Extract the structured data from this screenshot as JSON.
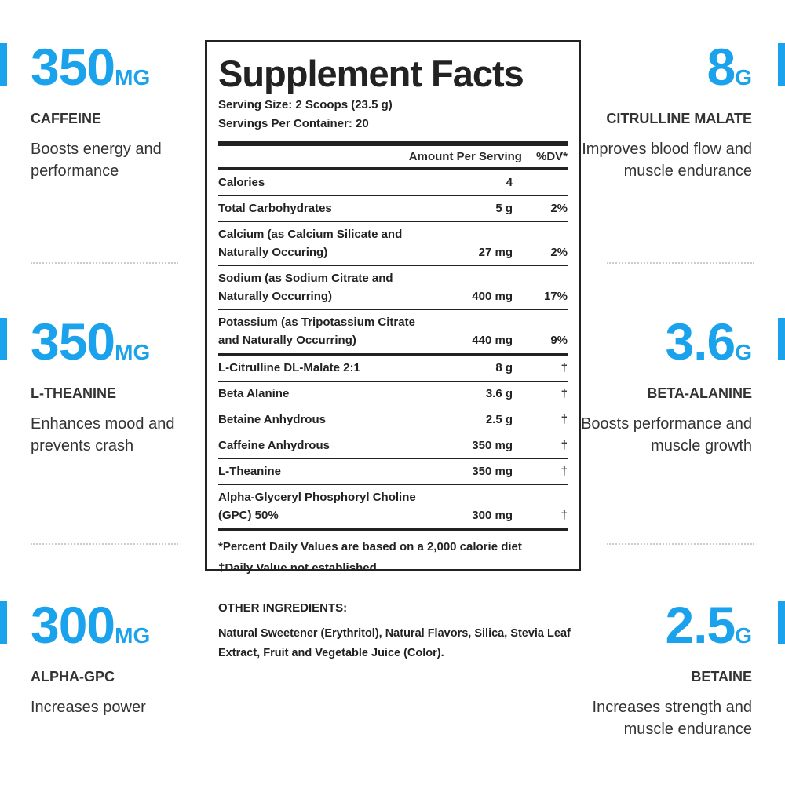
{
  "accent": "#1aa3ec",
  "left": [
    {
      "value": "350",
      "unit": "MG",
      "name": "CAFFEINE",
      "desc": "Boosts energy and performance"
    },
    {
      "value": "350",
      "unit": "MG",
      "name": "L-THEANINE",
      "desc": "Enhances mood and prevents crash"
    },
    {
      "value": "300",
      "unit": "MG",
      "name": "ALPHA-GPC",
      "desc": "Increases power"
    }
  ],
  "right": [
    {
      "value": "8",
      "unit": "G",
      "name": "CITRULLINE MALATE",
      "desc": "Improves blood flow and muscle endurance"
    },
    {
      "value": "3.6",
      "unit": "G",
      "name": "BETA-ALANINE",
      "desc": "Boosts performance and muscle growth"
    },
    {
      "value": "2.5",
      "unit": "G",
      "name": "BETAINE",
      "desc": "Increases strength and muscle endurance"
    }
  ],
  "facts": {
    "title": "Supplement Facts",
    "serving_size": "Serving Size: 2 Scoops (23.5 g)",
    "servings": "Servings Per Container: 20",
    "col_amount": "Amount Per Serving",
    "col_dv": "%DV*",
    "rows": [
      {
        "name": "Calories",
        "amount": "4",
        "dv": ""
      },
      {
        "name": "Total Carbohydrates",
        "amount": "5 g",
        "dv": "2%"
      },
      {
        "name": "Calcium (as Calcium Silicate and Naturally Occuring)",
        "amount": "27 mg",
        "dv": "2%"
      },
      {
        "name": "Sodium (as Sodium Citrate and Naturally Occurring)",
        "amount": "400 mg",
        "dv": "17%"
      },
      {
        "name": "Potassium (as Tripotassium Citrate and Naturally Occurring)",
        "amount": "440 mg",
        "dv": "9%"
      },
      {
        "name": "L-Citrulline DL-Malate 2:1",
        "amount": "8 g",
        "dv": "†"
      },
      {
        "name": "Beta Alanine",
        "amount": "3.6 g",
        "dv": "†"
      },
      {
        "name": "Betaine Anhydrous",
        "amount": "2.5 g",
        "dv": "†"
      },
      {
        "name": "Caffeine Anhydrous",
        "amount": "350 mg",
        "dv": "†"
      },
      {
        "name": "L-Theanine",
        "amount": "350 mg",
        "dv": "†"
      },
      {
        "name": "Alpha-Glyceryl Phosphoryl Choline (GPC) 50%",
        "amount": "300 mg",
        "dv": "†"
      }
    ],
    "footnote1": "*Percent Daily Values are based on a 2,000 calorie diet",
    "footnote2": "†Daily Value not established"
  },
  "other": {
    "title": "OTHER INGREDIENTS:",
    "text": "Natural Sweetener (Erythritol), Natural Flavors, Silica, Stevia Leaf Extract, Fruit and Vegetable Juice (Color)."
  }
}
